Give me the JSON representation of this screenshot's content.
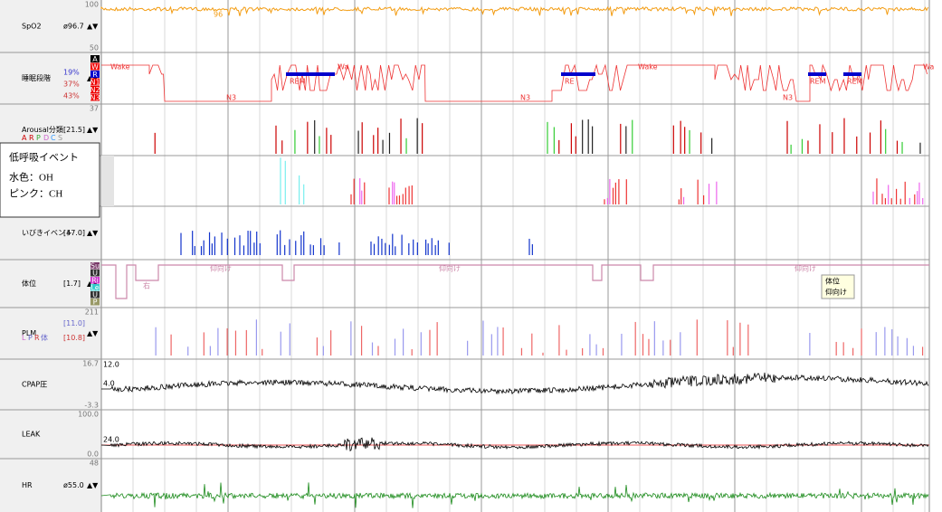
{
  "arrows": "▲▼",
  "panels": [
    {
      "label": "SpO2",
      "value": "ø96.7",
      "scale": [
        "100",
        "50"
      ],
      "trace_labels": [
        "96"
      ]
    },
    {
      "label": "睡眠段階",
      "stats": [
        "19%",
        "37%",
        "43%"
      ],
      "stages": [
        "A",
        "W",
        "R",
        "N1",
        "N2",
        "N3"
      ],
      "trace_labels": [
        "Wake",
        "REM",
        "N3",
        "Wa",
        "N3",
        "RE",
        "Wake",
        "N3",
        "REM",
        "REM",
        "Wa"
      ]
    },
    {
      "label": "Arousal分類",
      "value": "[21.5]",
      "legend": [
        "A",
        "R",
        "P",
        "D",
        "C",
        "S"
      ],
      "scale": [
        "37"
      ]
    },
    {
      "label": ""
    },
    {
      "label": "いびきイベント",
      "value": "[47.0]"
    },
    {
      "label": "体位",
      "value": "[1.7]",
      "stages": [
        "Su",
        "U",
        "Ri",
        "Le",
        "U",
        "P"
      ],
      "trace_labels": [
        "右",
        "仰向け",
        "仰向け",
        "仰向け"
      ]
    },
    {
      "label": "PLM",
      "value": "[11.0]",
      "value2": "[10.8]",
      "legend": [
        "L",
        "P",
        "R",
        "体"
      ],
      "scale": [
        "211"
      ]
    },
    {
      "label": "CPAP圧",
      "scale": [
        "16.7",
        "-3.3"
      ],
      "trace_labels": [
        "12.0",
        "4.0"
      ]
    },
    {
      "label": "LEAK",
      "scale": [
        "100.0",
        "0.0"
      ],
      "trace_labels": [
        "24.0"
      ]
    },
    {
      "label": "HR",
      "value": "ø55.0",
      "scale": [
        "48"
      ]
    }
  ],
  "tooltips": {
    "hypopnea": {
      "title": "低呼吸イベント",
      "lines": [
        "水色：OH",
        "ピンク：CH"
      ]
    },
    "position": {
      "lines": [
        "体位",
        "仰向け"
      ]
    }
  }
}
